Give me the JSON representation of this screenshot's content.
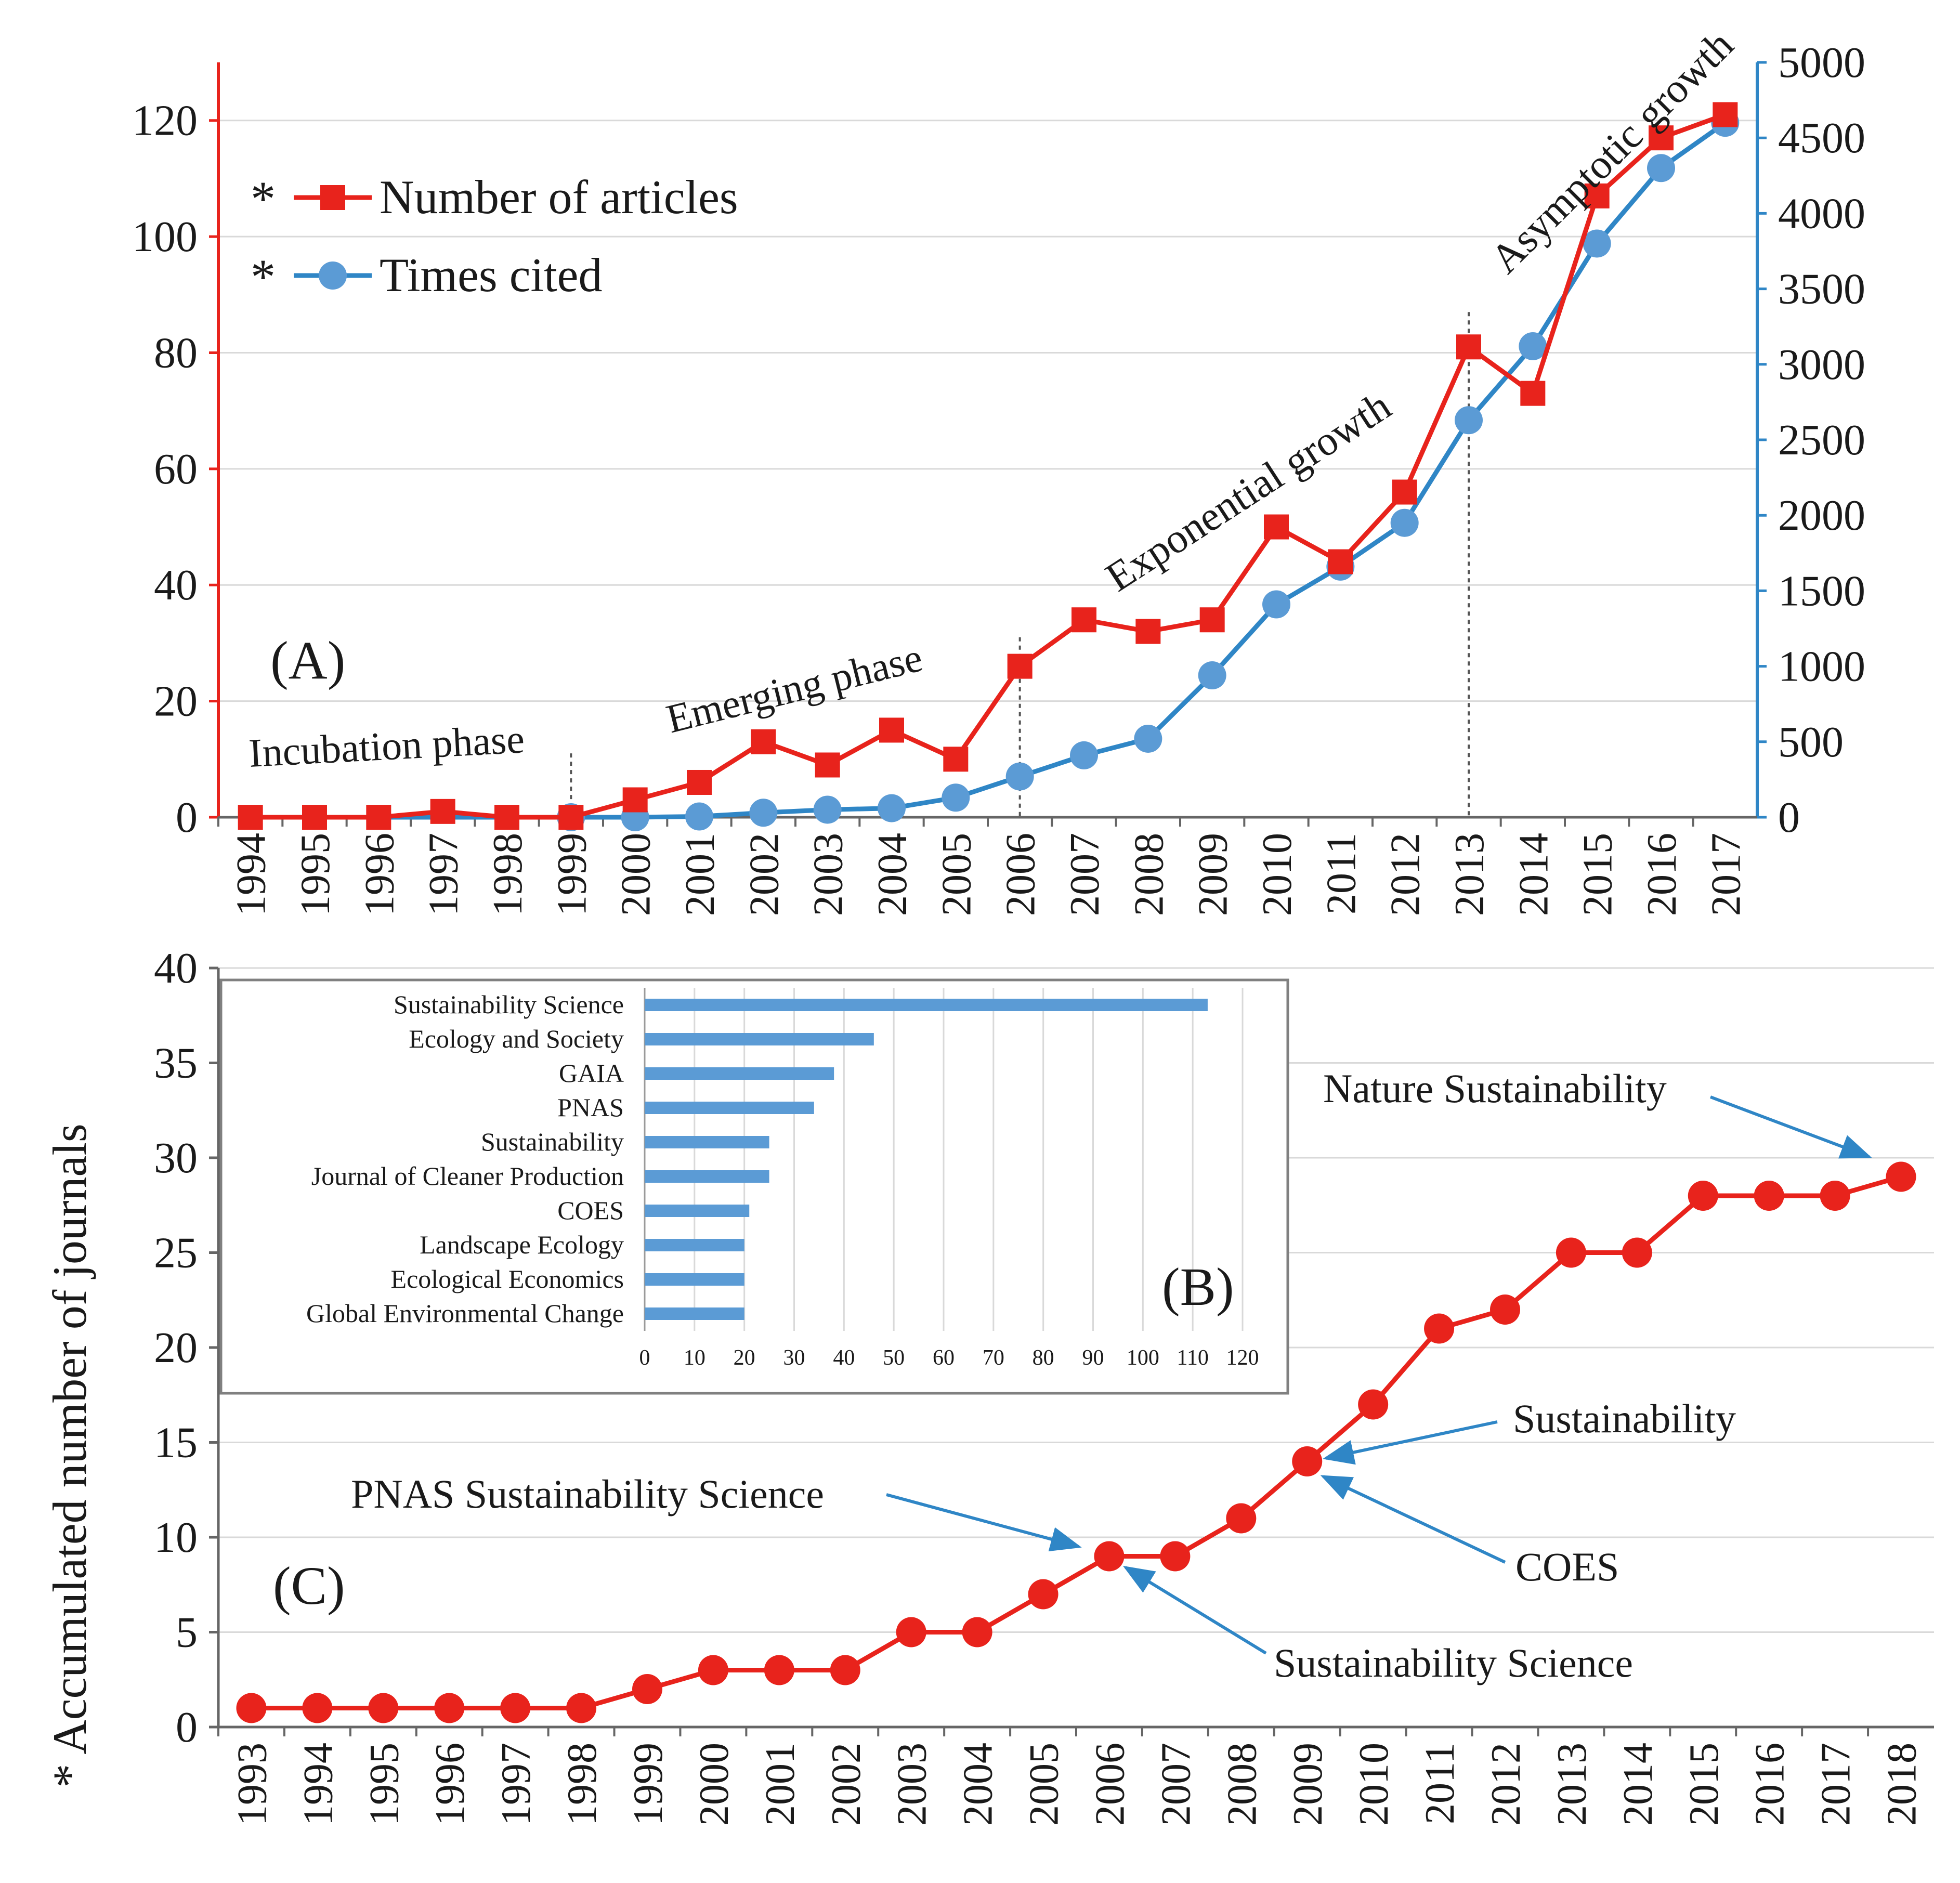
{
  "colors": {
    "red": "#e8231c",
    "blue": "#2f86c6",
    "blue_marker": "#5b9bd5",
    "bar": "#5b9bd5",
    "grid": "#d9d9d9",
    "annot_line": "#555555"
  },
  "chart_data": [
    {
      "id": "A",
      "panel_label": "(A)",
      "type": "line",
      "x": [
        1994,
        1995,
        1996,
        1997,
        1998,
        1999,
        2000,
        2001,
        2002,
        2003,
        2004,
        2005,
        2006,
        2007,
        2008,
        2009,
        2010,
        2011,
        2012,
        2013,
        2014,
        2015,
        2016,
        2017
      ],
      "series": [
        {
          "name": "Number of articles",
          "axis": "left",
          "marker": "square",
          "values": [
            0,
            0,
            0,
            1,
            0,
            0,
            3,
            6,
            13,
            9,
            15,
            10,
            26,
            34,
            32,
            34,
            50,
            44,
            56,
            81,
            73,
            107,
            117,
            121
          ]
        },
        {
          "name": "Times cited",
          "axis": "right",
          "marker": "circle",
          "values": [
            0,
            0,
            0,
            0,
            0,
            0,
            0,
            5,
            30,
            50,
            60,
            130,
            270,
            410,
            520,
            940,
            1410,
            1660,
            1950,
            2630,
            3120,
            3800,
            4300,
            4600
          ]
        }
      ],
      "legend": {
        "star": "*",
        "placement": "top-left"
      },
      "y_left": {
        "range": [
          0,
          130
        ],
        "ticks": [
          0,
          20,
          40,
          60,
          80,
          100,
          120
        ]
      },
      "y_right": {
        "range": [
          0,
          5000
        ],
        "ticks": [
          0,
          500,
          1000,
          1500,
          2000,
          2500,
          3000,
          3500,
          4000,
          4500,
          5000
        ]
      },
      "phase_dividers": [
        1999,
        2006,
        2013
      ],
      "annotations": [
        {
          "text": "Incubation phase"
        },
        {
          "text": "Emerging phase"
        },
        {
          "text": "Exponential growth"
        },
        {
          "text": "Asymptotic growth"
        }
      ]
    },
    {
      "id": "B",
      "panel_label": "(B)",
      "type": "bar",
      "orientation": "horizontal",
      "categories": [
        "Sustainability Science",
        "Ecology and Society",
        "GAIA",
        "PNAS",
        "Sustainability",
        "Journal of Cleaner Production",
        "COES",
        "Landscape Ecology",
        "Ecological Economics",
        "Global Environmental Change"
      ],
      "values": [
        113,
        46,
        38,
        34,
        25,
        25,
        21,
        20,
        20,
        20
      ],
      "x_range": [
        0,
        120
      ],
      "x_ticks": [
        0,
        10,
        20,
        30,
        40,
        50,
        60,
        70,
        80,
        90,
        100,
        110,
        120
      ]
    },
    {
      "id": "C",
      "panel_label": "(C)",
      "type": "line",
      "x": [
        1993,
        1994,
        1995,
        1996,
        1997,
        1998,
        1999,
        2000,
        2001,
        2002,
        2003,
        2004,
        2005,
        2006,
        2007,
        2008,
        2009,
        2010,
        2011,
        2012,
        2013,
        2014,
        2015,
        2016,
        2017,
        2018
      ],
      "series": [
        {
          "name": "Accumulated number of journals",
          "marker": "circle",
          "values": [
            1,
            1,
            1,
            1,
            1,
            1,
            2,
            3,
            3,
            3,
            5,
            5,
            7,
            9,
            9,
            11,
            14,
            17,
            21,
            22,
            25,
            25,
            28,
            28,
            28,
            29
          ]
        }
      ],
      "ylabel": "* Accumulated number of journals",
      "ylim": [
        0,
        40
      ],
      "y_ticks": [
        0,
        5,
        10,
        15,
        20,
        25,
        30,
        35,
        40
      ],
      "annotations": [
        {
          "text": "Nature Sustainability",
          "x": 2018
        },
        {
          "text": "Sustainability",
          "x": 2009
        },
        {
          "text": "COES",
          "x": 2009
        },
        {
          "text": "PNAS Sustainability Science",
          "x": 2006
        },
        {
          "text": "Sustainability Science",
          "x": 2006
        }
      ]
    }
  ]
}
